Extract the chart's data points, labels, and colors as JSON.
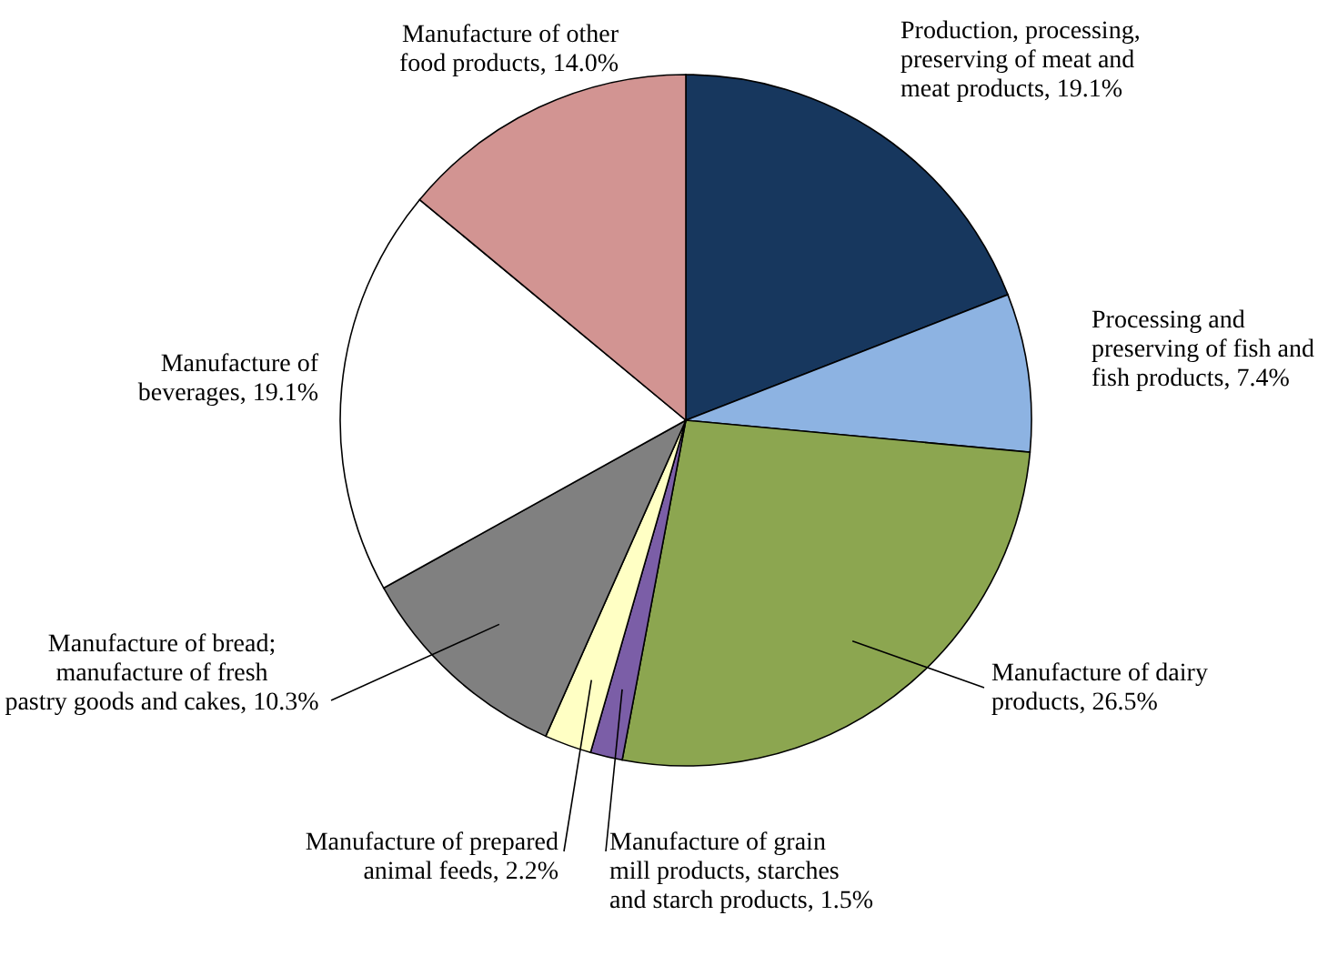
{
  "chart_data": {
    "type": "pie",
    "categories": [
      "Production, processing, preserving of meat and meat products",
      "Processing and preserving of fish and fish products",
      "Manufacture of dairy products",
      "Manufacture of grain mill products, starches and starch products",
      "Manufacture of prepared animal feeds",
      "Manufacture of bread; manufacture of fresh pastry goods and cakes",
      "Manufacture of beverages",
      "Manufacture of other food products"
    ],
    "values": [
      19.1,
      7.4,
      26.5,
      1.5,
      2.2,
      10.3,
      19.1,
      14.0
    ],
    "value_labels": [
      "19.1%",
      "7.4%",
      "26.5%",
      "1.5%",
      "2.2%",
      "10.3%",
      "19.1%",
      "14.0%"
    ],
    "colors": [
      "#17375e",
      "#8db3e2",
      "#8ca650",
      "#7b5ea7",
      "#ffffc4",
      "#808080",
      "#ffffff",
      "#d29492"
    ]
  }
}
